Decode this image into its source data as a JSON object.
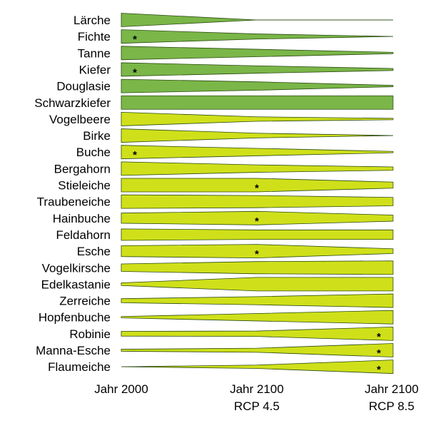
{
  "chart_data": {
    "type": "area",
    "colors": {
      "conifer": "#7ab648",
      "broadleaf": "#cfe01a",
      "outline": "#2b4a10"
    },
    "x_labels": [
      {
        "line1": "Jahr 2000",
        "line2": ""
      },
      {
        "line1": "Jahr 2100",
        "line2": "RCP 4.5"
      },
      {
        "line1": "Jahr 2100",
        "line2": "RCP 8.5"
      }
    ],
    "series": [
      {
        "name": "Lärche",
        "group": "conifer",
        "values": [
          1.0,
          0.0,
          0.0
        ],
        "star": null
      },
      {
        "name": "Fichte",
        "group": "conifer",
        "values": [
          1.0,
          0.38,
          0.0
        ],
        "star": 0
      },
      {
        "name": "Tanne",
        "group": "conifer",
        "values": [
          1.0,
          0.55,
          0.1
        ],
        "star": null
      },
      {
        "name": "Kiefer",
        "group": "conifer",
        "values": [
          1.0,
          0.55,
          0.15
        ],
        "star": 0
      },
      {
        "name": "Douglasie",
        "group": "conifer",
        "values": [
          1.0,
          0.62,
          0.1
        ],
        "star": null
      },
      {
        "name": "Schwarzkiefer",
        "group": "conifer",
        "values": [
          1.0,
          1.0,
          1.0
        ],
        "star": null
      },
      {
        "name": "Vogelbeere",
        "group": "broadleaf",
        "values": [
          1.0,
          0.33,
          0.1
        ],
        "star": null
      },
      {
        "name": "Birke",
        "group": "broadleaf",
        "values": [
          1.0,
          0.35,
          0.0
        ],
        "star": null
      },
      {
        "name": "Buche",
        "group": "broadleaf",
        "values": [
          1.0,
          0.55,
          0.1
        ],
        "star": 0
      },
      {
        "name": "Bergahorn",
        "group": "broadleaf",
        "values": [
          1.0,
          0.55,
          0.25
        ],
        "star": null
      },
      {
        "name": "Stieleiche",
        "group": "broadleaf",
        "values": [
          1.0,
          1.0,
          0.45
        ],
        "star": 1
      },
      {
        "name": "Traubeneiche",
        "group": "broadleaf",
        "values": [
          1.0,
          0.9,
          0.62
        ],
        "star": null
      },
      {
        "name": "Hainbuche",
        "group": "broadleaf",
        "values": [
          0.75,
          1.0,
          0.45
        ],
        "star": 1
      },
      {
        "name": "Feldahorn",
        "group": "broadleaf",
        "values": [
          0.85,
          0.7,
          0.7
        ],
        "star": null
      },
      {
        "name": "Esche",
        "group": "broadleaf",
        "values": [
          0.8,
          1.0,
          0.35
        ],
        "star": 1
      },
      {
        "name": "Vogelkirsche",
        "group": "broadleaf",
        "values": [
          0.55,
          0.9,
          1.0
        ],
        "star": null
      },
      {
        "name": "Edelkastanie",
        "group": "broadleaf",
        "values": [
          0.2,
          1.0,
          1.0
        ],
        "star": null
      },
      {
        "name": "Zerreiche",
        "group": "broadleaf",
        "values": [
          0.3,
          0.6,
          1.0
        ],
        "star": null
      },
      {
        "name": "Hopfenbuche",
        "group": "broadleaf",
        "values": [
          0.1,
          0.55,
          1.0
        ],
        "star": null
      },
      {
        "name": "Robinie",
        "group": "broadleaf",
        "values": [
          0.35,
          0.4,
          1.0
        ],
        "star": 2
      },
      {
        "name": "Manna-Esche",
        "group": "broadleaf",
        "values": [
          0.15,
          0.3,
          1.0
        ],
        "star": 2
      },
      {
        "name": "Flaumeiche",
        "group": "broadleaf",
        "values": [
          0.0,
          0.25,
          1.0
        ],
        "star": 2
      }
    ]
  }
}
